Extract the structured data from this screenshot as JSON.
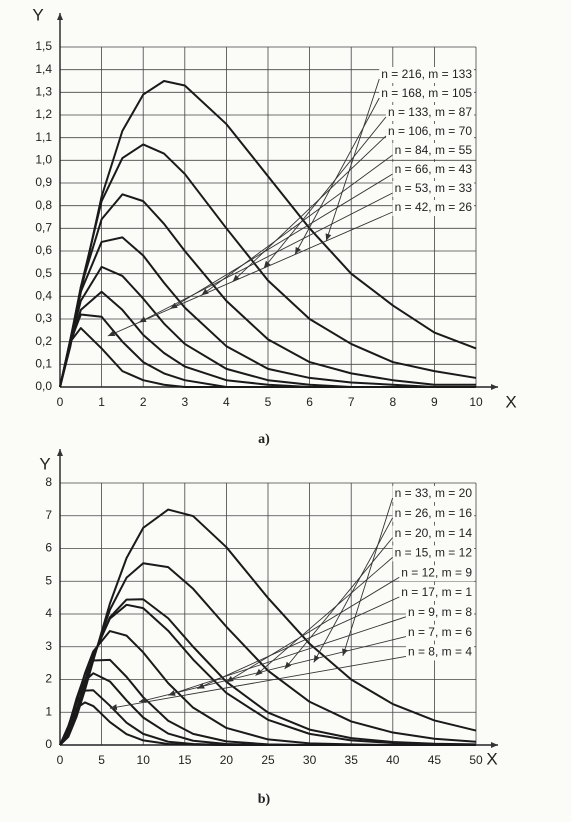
{
  "chart_data": [
    {
      "type": "line",
      "caption": "a)",
      "x_label": "X",
      "y_label": "Y",
      "grid": true,
      "legend": "upper right",
      "x": [
        0,
        0.25,
        0.5,
        1,
        1.5,
        2,
        2.5,
        3,
        4,
        5,
        6,
        7,
        8,
        9,
        10
      ],
      "xlim": [
        0,
        10
      ],
      "ylim": [
        0,
        1.5
      ],
      "xticks": [
        0,
        1,
        2,
        3,
        4,
        5,
        6,
        7,
        8,
        9,
        10
      ],
      "yticks": [
        {
          "value": 0,
          "label": "0,0"
        },
        {
          "value": 0.1,
          "label": "0,1"
        },
        {
          "value": 0.2,
          "label": "0,2"
        },
        {
          "value": 0.3,
          "label": "0,3"
        },
        {
          "value": 0.4,
          "label": "0,4"
        },
        {
          "value": 0.5,
          "label": "0,5"
        },
        {
          "value": 0.6,
          "label": "0,6"
        },
        {
          "value": 0.7,
          "label": "0,7"
        },
        {
          "value": 0.8,
          "label": "0,8"
        },
        {
          "value": 0.9,
          "label": "0,9"
        },
        {
          "value": 1.0,
          "label": "1,0"
        },
        {
          "value": 1.1,
          "label": "1,1"
        },
        {
          "value": 1.2,
          "label": "1,2"
        },
        {
          "value": 1.3,
          "label": "1,3"
        },
        {
          "value": 1.4,
          "label": "1,4"
        },
        {
          "value": 1.5,
          "label": "1,5"
        }
      ],
      "series": [
        {
          "name": "n = 216, m = 133",
          "color": "#1a1a1a",
          "values": [
            0,
            0.18,
            0.42,
            0.84,
            1.13,
            1.29,
            1.35,
            1.33,
            1.16,
            0.93,
            0.7,
            0.5,
            0.36,
            0.24,
            0.17
          ]
        },
        {
          "name": "n = 168, m = 105",
          "color": "#1a1a1a",
          "values": [
            0,
            0.2,
            0.44,
            0.82,
            1.01,
            1.07,
            1.03,
            0.94,
            0.7,
            0.47,
            0.3,
            0.19,
            0.11,
            0.07,
            0.04
          ]
        },
        {
          "name": "n = 133, m = 87",
          "color": "#1a1a1a",
          "values": [
            0,
            0.21,
            0.44,
            0.74,
            0.85,
            0.82,
            0.72,
            0.6,
            0.38,
            0.21,
            0.11,
            0.06,
            0.03,
            0.01,
            0.01
          ]
        },
        {
          "name": "n = 106, m = 70",
          "color": "#1a1a1a",
          "values": [
            0,
            0.21,
            0.42,
            0.64,
            0.66,
            0.58,
            0.46,
            0.35,
            0.18,
            0.08,
            0.04,
            0.02,
            0.01,
            0,
            0
          ]
        },
        {
          "name": "n = 84, m = 55",
          "color": "#1a1a1a",
          "values": [
            0,
            0.2,
            0.38,
            0.53,
            0.49,
            0.39,
            0.28,
            0.19,
            0.08,
            0.03,
            0.01,
            0,
            0,
            0,
            0
          ]
        },
        {
          "name": "n = 66, m = 43",
          "color": "#1a1a1a",
          "values": [
            0,
            0.19,
            0.34,
            0.42,
            0.34,
            0.23,
            0.15,
            0.09,
            0.03,
            0.01,
            0,
            0,
            0,
            0,
            0
          ]
        },
        {
          "name": "n = 53, m = 33",
          "color": "#1a1a1a",
          "values": [
            0,
            0.2,
            0.32,
            0.31,
            0.2,
            0.11,
            0.06,
            0.03,
            0,
            0,
            0,
            0,
            0,
            0,
            0
          ]
        },
        {
          "name": "n = 42, m = 26",
          "color": "#1a1a1a",
          "values": [
            0,
            0.2,
            0.26,
            0.17,
            0.07,
            0.03,
            0.01,
            0,
            0,
            0,
            0,
            0,
            0,
            0,
            0
          ]
        }
      ]
    },
    {
      "type": "line",
      "caption": "b)",
      "x_label": "X",
      "y_label": "Y",
      "grid": true,
      "legend": "upper right",
      "x": [
        0,
        1,
        2,
        3,
        4,
        6,
        8,
        10,
        13,
        16,
        20,
        25,
        30,
        35,
        40,
        45,
        50
      ],
      "xlim": [
        0,
        50
      ],
      "ylim": [
        0,
        8
      ],
      "xticks": [
        0,
        5,
        10,
        15,
        20,
        25,
        30,
        35,
        40,
        45,
        50
      ],
      "yticks": [
        0,
        1,
        2,
        3,
        4,
        5,
        6,
        7,
        8
      ],
      "series": [
        {
          "name": "n = 33, m = 20",
          "color": "#1a1a1a",
          "values": [
            0,
            0.25,
            0.87,
            1.68,
            2.58,
            4.32,
            5.71,
            6.63,
            7.19,
            6.99,
            6.04,
            4.49,
            3.09,
            2.0,
            1.25,
            0.75,
            0.44
          ]
        },
        {
          "name": "n = 26, m = 16",
          "color": "#1a1a1a",
          "values": [
            0,
            0.29,
            0.95,
            1.78,
            2.64,
            4.13,
            5.11,
            5.55,
            5.43,
            4.77,
            3.61,
            2.27,
            1.32,
            0.72,
            0.38,
            0.19,
            0.1
          ]
        },
        {
          "name": "n = 20, m = 14",
          "color": "#1a1a1a",
          "values": [
            0,
            0.33,
            1.05,
            1.9,
            2.7,
            3.9,
            4.44,
            4.45,
            3.87,
            3.0,
            1.93,
            0.99,
            0.47,
            0.21,
            0.09,
            0.04,
            0.02
          ]
        },
        {
          "name": "n = 15, m = 12",
          "color": "#1a1a1a",
          "values": [
            0,
            0.35,
            1.1,
            1.96,
            2.74,
            3.86,
            4.28,
            4.18,
            3.49,
            2.61,
            1.59,
            0.77,
            0.34,
            0.14,
            0.06,
            0.02,
            0.01
          ]
        },
        {
          "name": "n = 12, m = 9",
          "color": "#1a1a1a",
          "values": [
            0,
            0.45,
            1.32,
            2.19,
            2.86,
            3.48,
            3.34,
            2.83,
            1.89,
            1.14,
            0.52,
            0.17,
            0.05,
            0.02,
            0,
            0,
            0
          ]
        },
        {
          "name": "n = 17, m = 1",
          "color": "#1a1a1a",
          "values": [
            0,
            0.53,
            1.43,
            2.16,
            2.58,
            2.6,
            2.08,
            1.46,
            0.74,
            0.34,
            0.11,
            0.02,
            0,
            0,
            0,
            0,
            0
          ]
        },
        {
          "name": "n = 9, m = 8",
          "color": "#1a1a1a",
          "values": [
            0,
            0.55,
            1.39,
            1.96,
            2.19,
            1.94,
            1.36,
            0.84,
            0.35,
            0.13,
            0.03,
            0,
            0,
            0,
            0,
            0,
            0
          ]
        },
        {
          "name": "n = 7, m = 6",
          "color": "#1a1a1a",
          "values": [
            0,
            0.58,
            1.31,
            1.66,
            1.67,
            1.2,
            0.68,
            0.34,
            0.1,
            0.03,
            0,
            0,
            0,
            0,
            0,
            0,
            0
          ]
        },
        {
          "name": "n = 8, m = 4",
          "color": "#1a1a1a",
          "values": [
            0,
            0.55,
            1.13,
            1.3,
            1.19,
            0.7,
            0.33,
            0.14,
            0.03,
            0.01,
            0,
            0,
            0,
            0,
            0,
            0,
            0
          ]
        }
      ]
    }
  ]
}
